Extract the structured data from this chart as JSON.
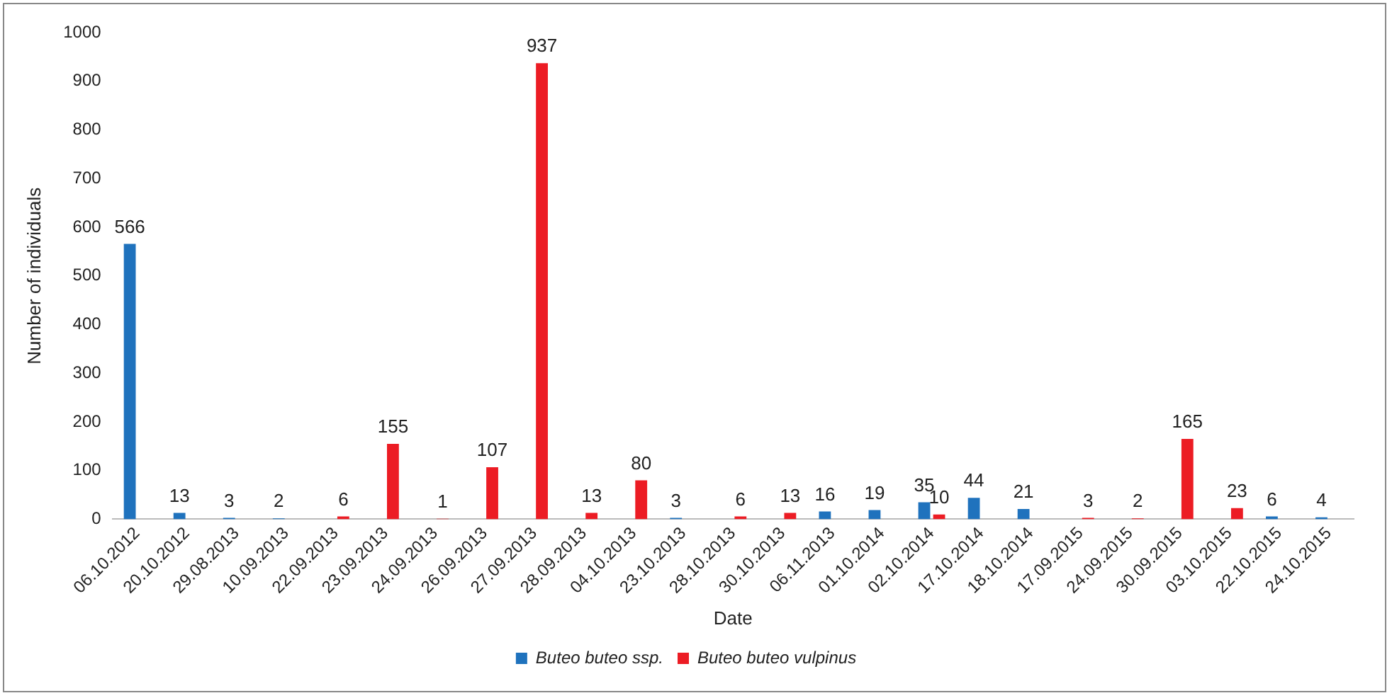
{
  "chart_data": {
    "type": "bar",
    "xlabel": "Date",
    "ylabel": "Number of individuals",
    "categories": [
      "06.10.2012",
      "20.10.2012",
      "29.08.2013",
      "10.09.2013",
      "22.09.2013",
      "23.09.2013",
      "24.09.2013",
      "26.09.2013",
      "27.09.2013",
      "28.09.2013",
      "04.10.2013",
      "23.10.2013",
      "28.10.2013",
      "30.10.2013",
      "06.11.2013",
      "01.10.2014",
      "02.10.2014",
      "17.10.2014",
      "18.10.2014",
      "17.09.2015",
      "24.09.2015",
      "30.09.2015",
      "03.10.2015",
      "22.10.2015",
      "24.10.2015"
    ],
    "series": [
      {
        "name": "Buteo buteo ssp.",
        "color": "#1f72bd",
        "values": [
          566,
          13,
          3,
          2,
          null,
          null,
          null,
          null,
          null,
          null,
          null,
          3,
          null,
          null,
          16,
          19,
          35,
          44,
          21,
          null,
          null,
          null,
          null,
          6,
          4
        ]
      },
      {
        "name": "Buteo buteo vulpinus",
        "color": "#ec1c24",
        "values": [
          null,
          null,
          null,
          null,
          6,
          155,
          1,
          107,
          937,
          13,
          80,
          null,
          6,
          13,
          null,
          null,
          10,
          null,
          null,
          3,
          2,
          165,
          23,
          null,
          null
        ]
      }
    ],
    "ylim": [
      0,
      1000
    ],
    "yticks": [
      0,
      100,
      200,
      300,
      400,
      500,
      600,
      700,
      800,
      900,
      1000
    ],
    "grid": false,
    "legend": "bottom",
    "data_labels": true
  }
}
